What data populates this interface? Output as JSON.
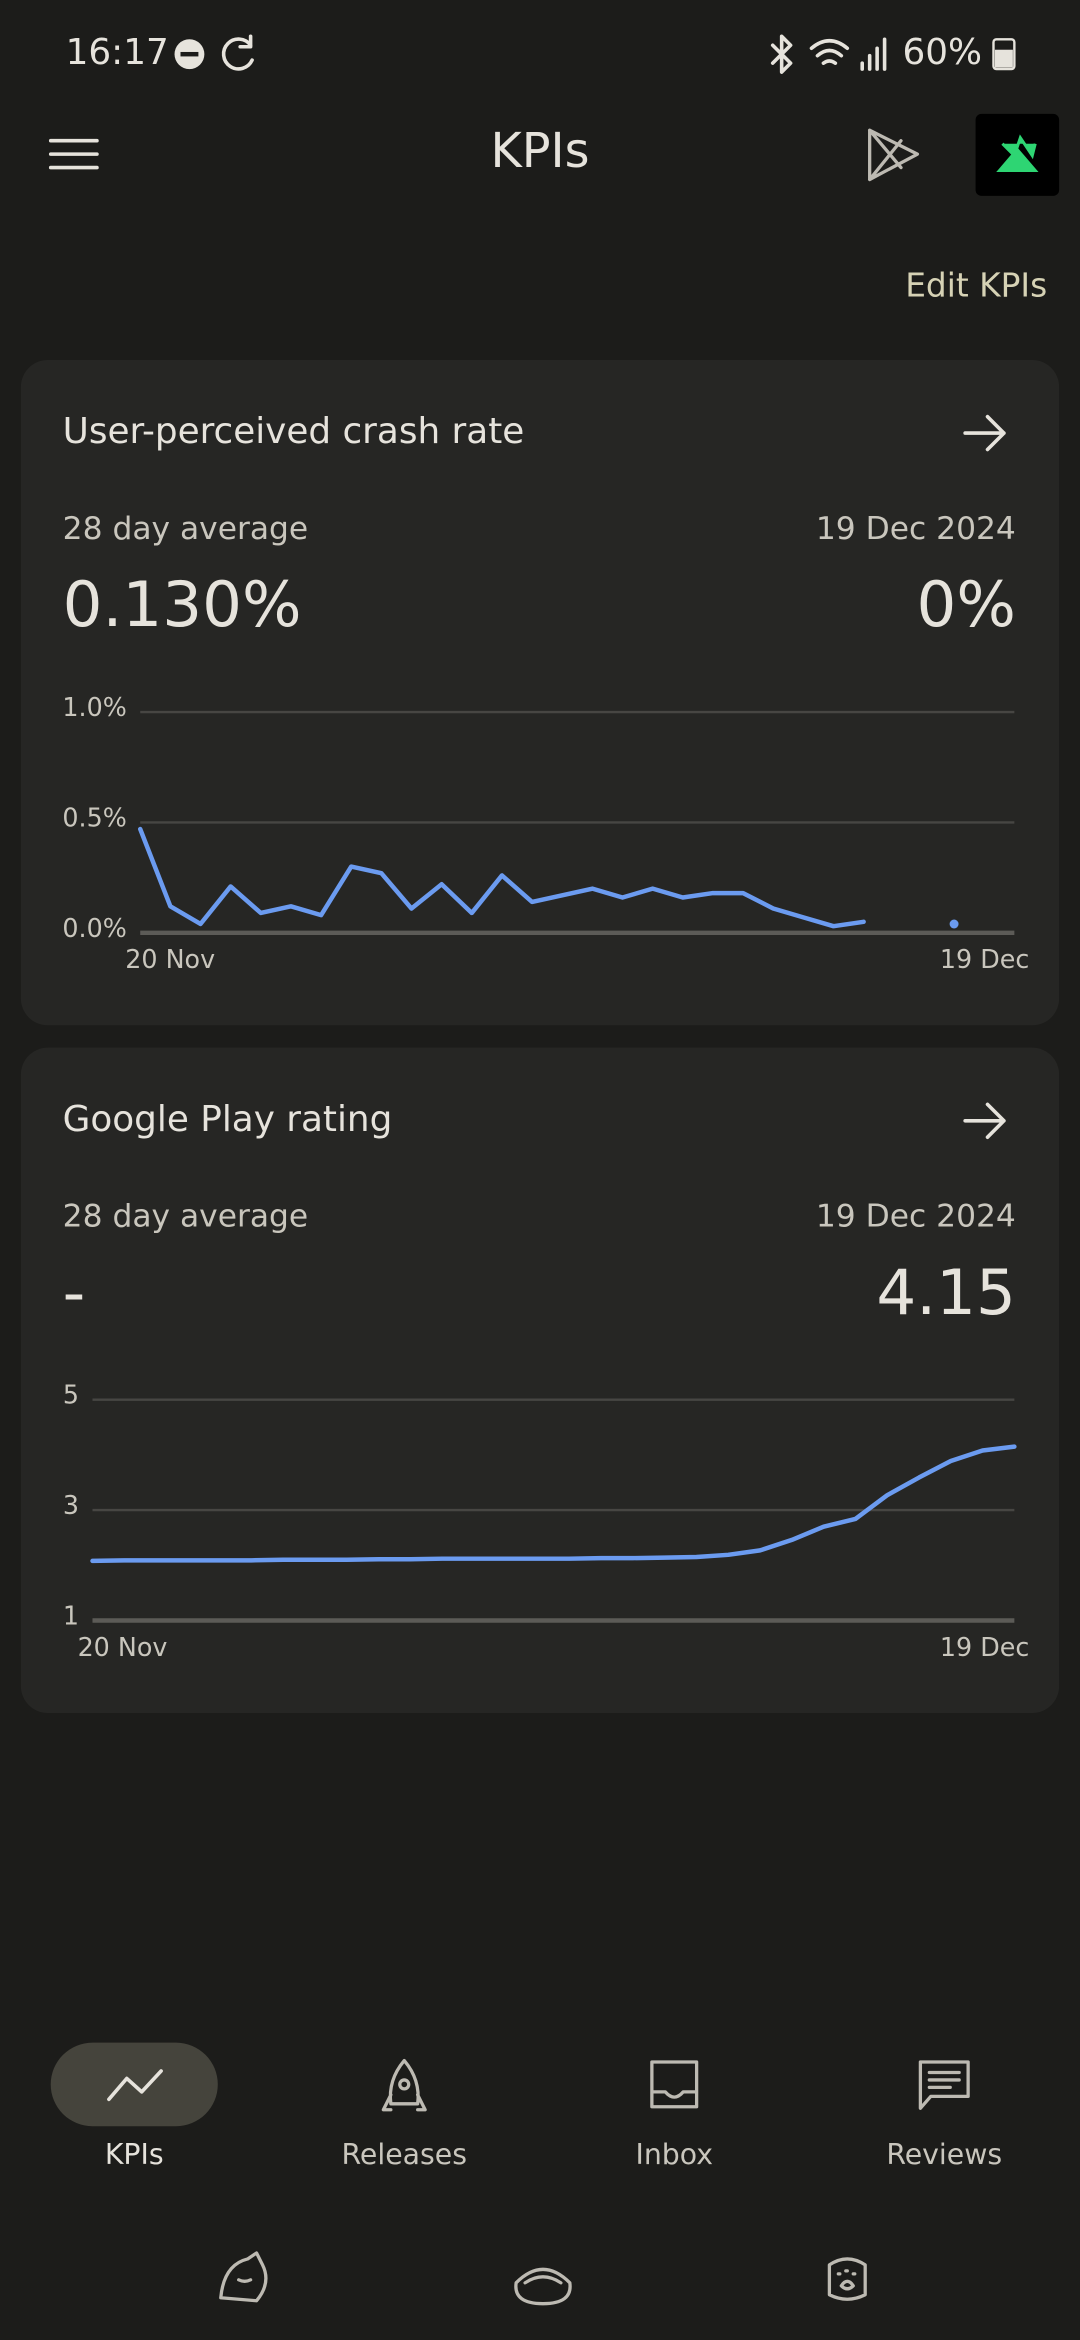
{
  "status_bar": {
    "time": "16:17",
    "battery": "60%"
  },
  "header": {
    "title": "KPIs",
    "action": "Edit KPIs"
  },
  "cards": [
    {
      "title": "User-perceived crash rate",
      "avg_label": "28 day average",
      "avg_value": "0.130%",
      "date_label": "19 Dec 2024",
      "date_value": "0%",
      "chart_data": {
        "type": "line",
        "categories": [
          "20 Nov",
          null,
          null,
          null,
          null,
          null,
          null,
          null,
          null,
          null,
          null,
          null,
          null,
          null,
          null,
          null,
          null,
          null,
          null,
          null,
          null,
          null,
          null,
          null,
          null,
          null,
          null,
          null,
          null,
          "19 Dec"
        ],
        "series": [
          {
            "color": "#6b9bf0",
            "values": [
              0.47,
              0.12,
              0.04,
              0.21,
              0.09,
              0.12,
              0.08,
              0.3,
              0.27,
              0.11,
              0.22,
              0.09,
              0.26,
              0.14,
              0.17,
              0.2,
              0.16,
              0.2,
              0.16,
              0.18,
              0.18,
              0.11,
              0.07,
              0.03,
              0.05,
              null,
              null,
              0.04,
              null,
              null
            ]
          }
        ],
        "ylim": [
          0,
          1
        ],
        "yticks": [
          {
            "value": 0,
            "label": "0.0%"
          },
          {
            "value": 0.5,
            "label": "0.5%"
          },
          {
            "value": 1,
            "label": "1.0%"
          }
        ],
        "grid": true
      }
    },
    {
      "title": "Google Play rating",
      "avg_label": "28 day average",
      "avg_value": "-",
      "date_label": "19 Dec 2024",
      "date_value": "4.15",
      "chart_data": {
        "type": "line",
        "categories": [
          "20 Nov",
          null,
          null,
          null,
          null,
          null,
          null,
          null,
          null,
          null,
          null,
          null,
          null,
          null,
          null,
          null,
          null,
          null,
          null,
          null,
          null,
          null,
          null,
          null,
          null,
          null,
          null,
          null,
          null,
          "19 Dec"
        ],
        "series": [
          {
            "color": "#6b9bf0",
            "values": [
              2.08,
              2.09,
              2.09,
              2.09,
              2.09,
              2.09,
              2.1,
              2.1,
              2.1,
              2.11,
              2.11,
              2.12,
              2.12,
              2.12,
              2.12,
              2.12,
              2.13,
              2.13,
              2.14,
              2.15,
              2.19,
              2.27,
              2.46,
              2.7,
              2.84,
              3.27,
              3.59,
              3.89,
              4.08,
              4.15
            ]
          }
        ],
        "ylim": [
          1,
          5
        ],
        "yticks": [
          1,
          3,
          5
        ],
        "grid": true
      }
    }
  ],
  "nav": [
    {
      "label": "KPIs"
    },
    {
      "label": "Releases"
    },
    {
      "label": "Inbox"
    },
    {
      "label": "Reviews"
    }
  ]
}
